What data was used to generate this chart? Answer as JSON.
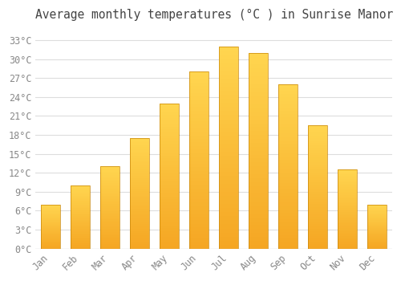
{
  "months": [
    "Jan",
    "Feb",
    "Mar",
    "Apr",
    "May",
    "Jun",
    "Jul",
    "Aug",
    "Sep",
    "Oct",
    "Nov",
    "Dec"
  ],
  "temperatures": [
    7,
    10,
    13,
    17.5,
    23,
    28,
    32,
    31,
    26,
    19.5,
    12.5,
    7
  ],
  "bar_color_bottom": "#F5A623",
  "bar_color_top": "#FFD54F",
  "bar_edge_color": "#C8860A",
  "title": "Average monthly temperatures (°C ) in Sunrise Manor",
  "title_fontsize": 10.5,
  "ylim": [
    0,
    35
  ],
  "yticks": [
    0,
    3,
    6,
    9,
    12,
    15,
    18,
    21,
    24,
    27,
    30,
    33
  ],
  "ytick_labels": [
    "0°C",
    "3°C",
    "6°C",
    "9°C",
    "12°C",
    "15°C",
    "18°C",
    "21°C",
    "24°C",
    "27°C",
    "30°C",
    "33°C"
  ],
  "background_color": "#FFFFFF",
  "plot_bg_color": "#FFFFFF",
  "grid_color": "#DDDDDD",
  "tick_label_color": "#888888",
  "tick_label_fontsize": 8.5,
  "title_color": "#444444",
  "bar_width": 0.65,
  "n_gradient_steps": 50
}
